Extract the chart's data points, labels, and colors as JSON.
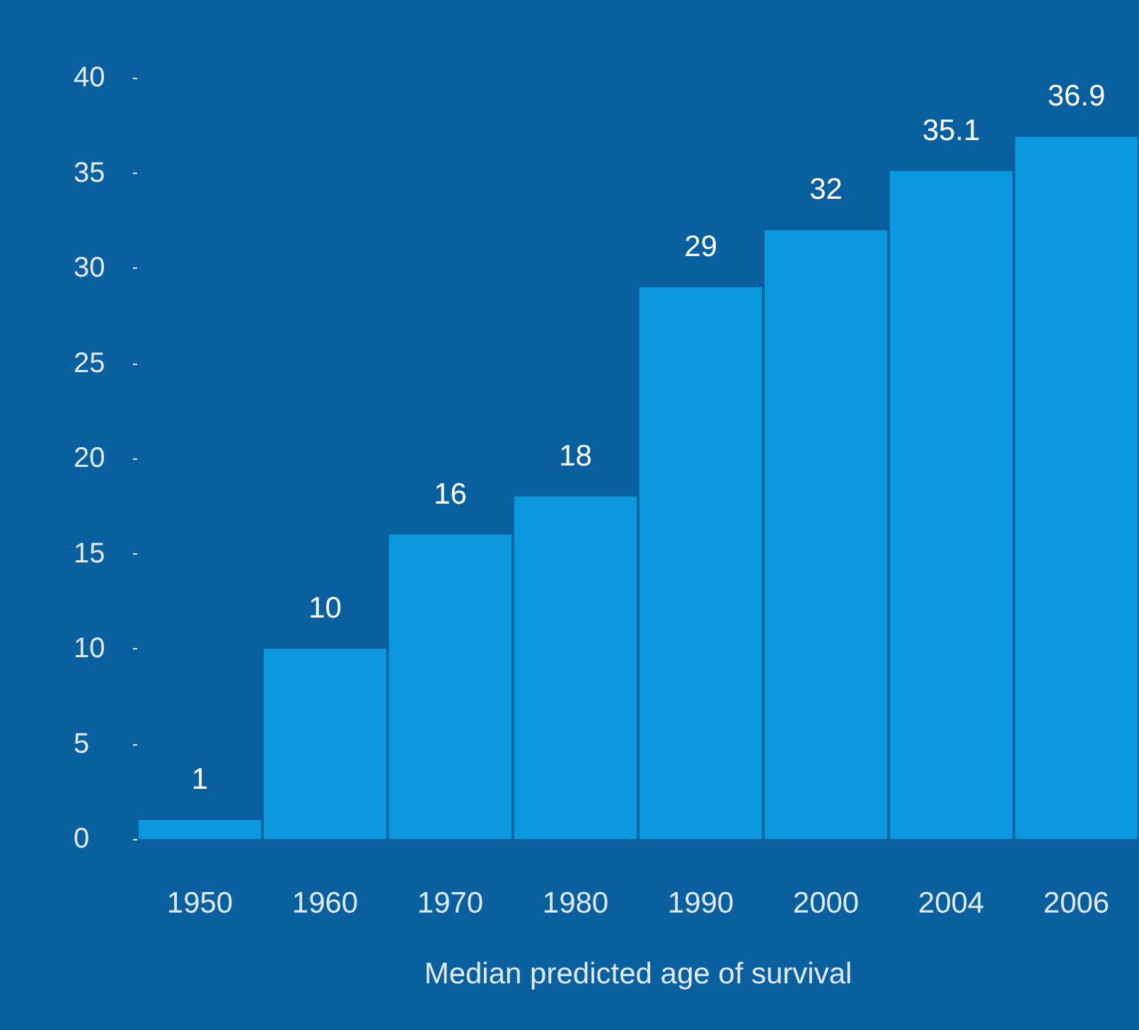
{
  "chart_data": {
    "type": "bar",
    "xlabel": "Median predicted age of survival",
    "categories": [
      "1950",
      "1960",
      "1970",
      "1980",
      "1990",
      "2000",
      "2004",
      "2006"
    ],
    "values": [
      1,
      10,
      16,
      18,
      29,
      32,
      35.1,
      36.9
    ],
    "color": "#0a97db",
    "data_labels": true,
    "grid": false,
    "ylim": [
      0,
      40
    ],
    "yticks": [
      0,
      5,
      10,
      15,
      20,
      25,
      30,
      35,
      40
    ]
  }
}
